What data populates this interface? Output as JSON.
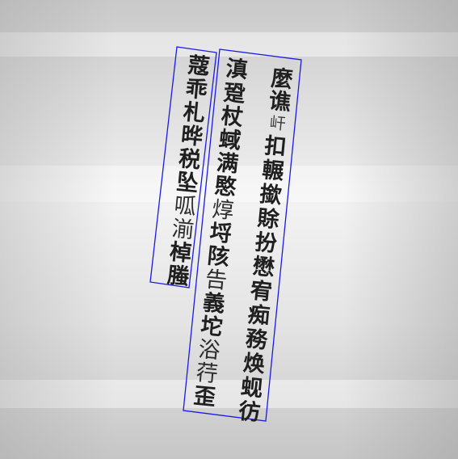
{
  "columns": [
    {
      "id": "col-right",
      "chars": [
        "麼",
        "谯",
        "屽",
        "扣",
        "輾",
        "撳",
        "賖",
        "扮",
        "懋",
        "宥",
        "痴",
        "務",
        "焕",
        "蚬",
        "彷"
      ],
      "small": [
        2
      ],
      "thin": []
    },
    {
      "id": "col-middle",
      "chars": [
        "滇",
        "跫",
        "杖",
        "蜮",
        "满",
        "愍",
        "焞",
        "埒",
        "陔",
        "告",
        "義",
        "坨",
        "浴",
        "荇",
        "歪"
      ],
      "small": [],
      "thin": [
        6,
        9,
        12,
        13
      ]
    },
    {
      "id": "col-left",
      "chars": [
        "蔻",
        "乖",
        "札",
        "晔",
        "税",
        "坠",
        "呱",
        "湔",
        "棹",
        "螣"
      ],
      "small": [],
      "thin": [
        6,
        7
      ]
    }
  ],
  "colors": {
    "box": "#1a1ae6",
    "text": "#1f1f1f"
  }
}
